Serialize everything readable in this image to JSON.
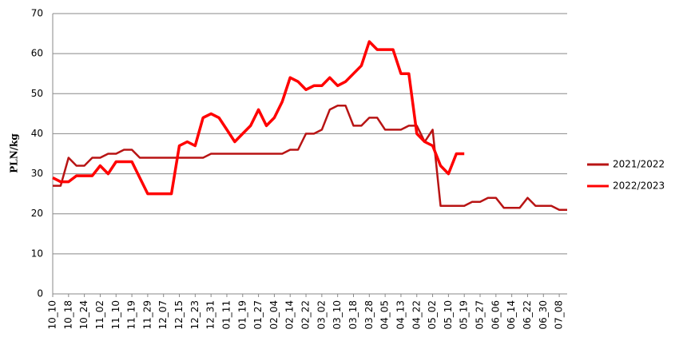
{
  "chart_data": {
    "type": "line",
    "y_label": "PLN/kg",
    "categories": [
      "10_10",
      null,
      "10_18",
      null,
      "10_24",
      null,
      "11_02",
      null,
      "11_10",
      null,
      "11_19",
      null,
      "11_29",
      null,
      "12_07",
      null,
      "12_15",
      null,
      "12_23",
      null,
      "12_31",
      null,
      "01_11",
      null,
      "01_19",
      null,
      "01_27",
      null,
      "02_04",
      null,
      "02_14",
      null,
      "02_22",
      null,
      "03_02",
      null,
      "03_10",
      null,
      "03_18",
      null,
      "03_28",
      null,
      "04_05",
      null,
      "04_13",
      null,
      "04_22",
      null,
      "05_02",
      null,
      "05_10",
      null,
      "05_19",
      null,
      "05_27",
      null,
      "06_06",
      null,
      "06_14",
      null,
      "06_22",
      null,
      "06_30",
      null,
      "07_08",
      null
    ],
    "series": [
      {
        "name": "2021/2022",
        "color": "#b81414",
        "values": [
          27,
          27,
          34,
          32,
          32,
          34,
          34,
          35,
          35,
          36,
          36,
          34,
          34,
          34,
          34,
          34,
          34,
          34,
          34,
          34,
          35,
          35,
          35,
          35,
          35,
          35,
          35,
          35,
          35,
          35,
          36,
          36,
          40,
          40,
          41,
          46,
          47,
          47,
          42,
          42,
          44,
          44,
          41,
          41,
          41,
          42,
          42,
          38,
          41,
          22,
          22,
          22,
          22,
          23,
          23,
          24,
          24,
          21.5,
          21.5,
          21.5,
          24,
          22,
          22,
          22,
          21,
          21
        ]
      },
      {
        "name": "2022/2023",
        "color": "#ff0000",
        "values": [
          29,
          28,
          28,
          29.5,
          29.5,
          29.5,
          32,
          30,
          33,
          33,
          33,
          29,
          25,
          25,
          25,
          25,
          37,
          38,
          37,
          44,
          45,
          44,
          41,
          38,
          40,
          42,
          46,
          42,
          44,
          48,
          54,
          53,
          51,
          52,
          52,
          54,
          52,
          53,
          55,
          57,
          63,
          61,
          61,
          61,
          55,
          55,
          40,
          38,
          37,
          32,
          30,
          35,
          35,
          null,
          null,
          null,
          null,
          null,
          null,
          null,
          null,
          null,
          null,
          null,
          null,
          null
        ]
      }
    ],
    "ylim": [
      0,
      70
    ],
    "yticks": [
      0,
      10,
      20,
      30,
      40,
      50,
      60,
      70
    ],
    "grid": true,
    "legend": "right"
  }
}
